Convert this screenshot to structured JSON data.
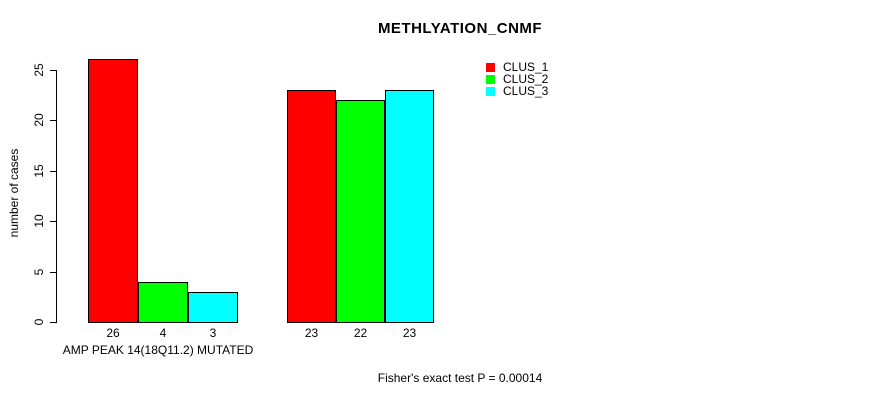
{
  "chart_data": {
    "type": "bar",
    "title": "METHLYATION_CNMF",
    "ylabel": "number of cases",
    "xlabel": "",
    "ylim": [
      0,
      26
    ],
    "yticks": [
      0,
      5,
      10,
      15,
      20,
      25
    ],
    "grid": false,
    "legend_position": "top-right",
    "categories": [
      "AMP PEAK 14(18Q11.2) MUTATED",
      ""
    ],
    "series": [
      {
        "name": "CLUS_1",
        "color": "#ff0000",
        "values": [
          26,
          23
        ]
      },
      {
        "name": "CLUS_2",
        "color": "#00ff00",
        "values": [
          4,
          22
        ]
      },
      {
        "name": "CLUS_3",
        "color": "#00ffff",
        "values": [
          3,
          23
        ]
      }
    ],
    "annotation": "Fisher's exact test P = 0.00014"
  }
}
